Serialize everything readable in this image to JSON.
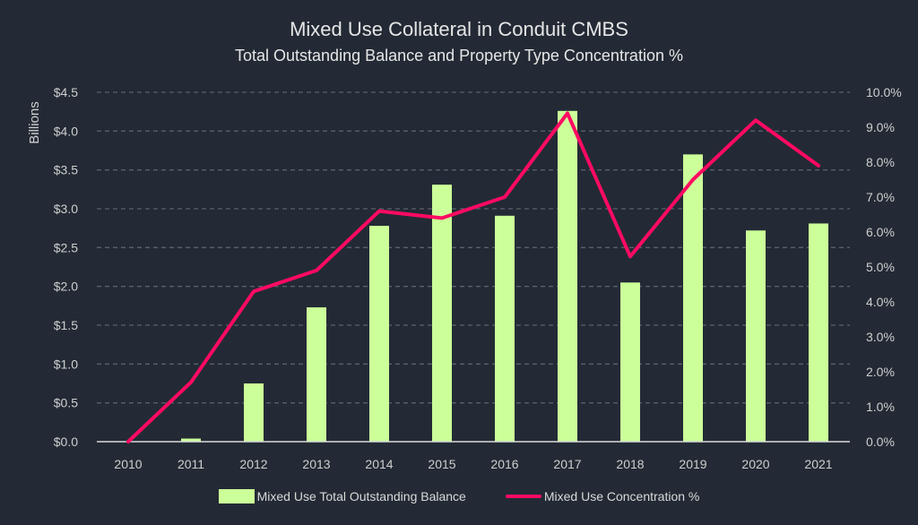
{
  "chart_data": {
    "type": "bar",
    "title": "Mixed Use Collateral in Conduit CMBS",
    "subtitle": "Total Outstanding Balance and Property Type Concentration %",
    "categories": [
      "2010",
      "2011",
      "2012",
      "2013",
      "2014",
      "2015",
      "2016",
      "2017",
      "2018",
      "2019",
      "2020",
      "2021"
    ],
    "series": [
      {
        "name": "Mixed Use Total Outstanding Balance",
        "type": "bar",
        "axis": "left",
        "color": "#ccff99",
        "values": [
          0.0,
          0.04,
          0.75,
          1.73,
          2.78,
          3.31,
          2.91,
          4.26,
          2.05,
          3.7,
          2.72,
          2.81
        ]
      },
      {
        "name": "Mixed Use Concentration %",
        "type": "line",
        "axis": "right",
        "color": "#ff0a62",
        "values": [
          0.0,
          1.7,
          4.3,
          4.9,
          6.6,
          6.4,
          7.0,
          9.4,
          5.3,
          7.5,
          9.2,
          7.9
        ]
      }
    ],
    "ylabel": "Billions",
    "ylim": [
      0,
      4.5
    ],
    "yticks": [
      "$0.0",
      "$0.5",
      "$1.0",
      "$1.5",
      "$2.0",
      "$2.5",
      "$3.0",
      "$3.5",
      "$4.0",
      "$4.5"
    ],
    "y2lim": [
      0,
      10
    ],
    "y2ticks": [
      "0.0%",
      "1.0%",
      "2.0%",
      "3.0%",
      "4.0%",
      "5.0%",
      "6.0%",
      "7.0%",
      "8.0%",
      "9.0%",
      "10.0%"
    ],
    "grid": true,
    "legend": "bottom"
  }
}
